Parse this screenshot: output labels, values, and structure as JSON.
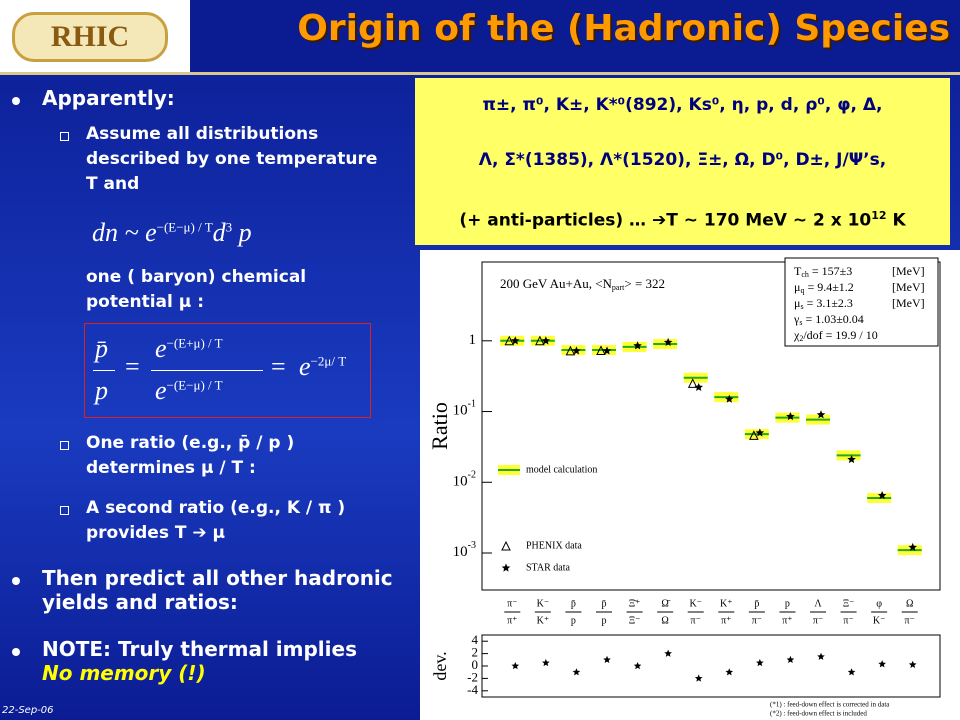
{
  "header": {
    "logo": "RHIC",
    "title": "Origin of the (Hadronic) Species"
  },
  "left": {
    "b1": "Apparently:",
    "s1": "Assume all distributions described by one temperature T and",
    "formula1": {
      "lhs": "dn ~ e",
      "exponent": "−(E−μ) / T",
      "d": "d",
      "power": "3",
      "p": "p"
    },
    "s1b": "one ( baryon) chemical potential μ :",
    "formula2": {
      "pbar": "p̄",
      "p": "p",
      "eq": "=",
      "num_base": "e",
      "num_exp": "−(E+μ) / T",
      "den_base": "e",
      "den_exp": "−(E−μ) / T",
      "rhs_base": "e",
      "rhs_exp": "−2μ/ T"
    },
    "s2": "One ratio (e.g., p̄ / p ) determines μ / T :",
    "s3": "A second ratio (e.g., K / π ) provides T ➔ μ",
    "b2": "Then predict all other hadronic yields and ratios:",
    "b3": "NOTE: Truly thermal implies",
    "b3_em": "No memory (!)",
    "date": "22-Sep-06"
  },
  "box": {
    "line1": "π±, π⁰, K±, K*⁰(892), Ks⁰, η, p, d, ρ⁰, φ, Δ,",
    "line2": "Λ, Σ*(1385), Λ*(1520), Ξ±, Ω, D⁰, D±, J/Ψ’s,",
    "line3": "(+ anti-particles) … ➔T ~ 170 MeV ~ 2 x 10",
    "line3_sup": "12",
    "line3_end": " K"
  },
  "chart_data": {
    "type": "ratio-plot",
    "title": "200 GeV Au+Au, <N",
    "title_sub": "part",
    "title_end": "> = 322",
    "ylabel": "Ratio",
    "log_y": true,
    "ylim": [
      0.0003,
      13
    ],
    "yticks": [
      1,
      {
        "value": 0.1,
        "label": "10",
        "exponent": "-1"
      },
      {
        "value": 0.01,
        "label": "10",
        "exponent": "-2"
      },
      {
        "value": 0.001,
        "label": "10",
        "exponent": "-3"
      }
    ],
    "numerators": [
      "π⁻",
      "K⁻",
      "p̄",
      "p̄",
      "Ξ̄⁺",
      "Ω̄",
      "K⁻",
      "K⁺",
      "p̄",
      "p",
      "Λ",
      "Ξ⁻",
      "φ",
      "Ω"
    ],
    "denominators": [
      "π⁺",
      "K⁺",
      "p",
      "p",
      "Ξ⁻",
      "Ω",
      "π⁻",
      "π⁺",
      "π⁻",
      "π⁺",
      "π⁻",
      "π⁻",
      "K⁻",
      "π⁻"
    ],
    "series": [
      {
        "name": "model calculation",
        "marker": "band",
        "color": "#22aa22",
        "values": [
          1.0,
          1.0,
          0.74,
          0.74,
          0.82,
          0.9,
          0.3,
          0.16,
          0.048,
          0.082,
          0.077,
          0.024,
          0.006,
          0.0011
        ]
      },
      {
        "name": "PHENIX data",
        "marker": "triangle",
        "color": "#000000",
        "values": [
          1.0,
          1.0,
          0.72,
          0.73,
          null,
          null,
          0.25,
          null,
          0.046,
          null,
          null,
          null,
          null,
          null
        ]
      },
      {
        "name": "STAR data",
        "marker": "star",
        "color": "#000000",
        "values": [
          1.0,
          1.0,
          0.72,
          0.72,
          0.85,
          0.95,
          0.22,
          0.15,
          0.05,
          0.085,
          0.09,
          0.021,
          0.0065,
          0.0012
        ]
      }
    ],
    "fit": [
      {
        "symbol": "T",
        "sub": "ch",
        "value": " = 157±3",
        "unit": "[MeV]"
      },
      {
        "symbol": "μ",
        "sub": "q",
        "value": " = 9.4±1.2",
        "unit": "[MeV]"
      },
      {
        "symbol": "μ",
        "sub": "s",
        "value": " = 3.1±2.3",
        "unit": "[MeV]"
      },
      {
        "symbol": "γ",
        "sub": "s",
        "value": " = 1.03±0.04",
        "unit": ""
      },
      {
        "symbol": "χ",
        "sub": "2",
        "value": "/dof = 19.9 / 10",
        "unit": ""
      }
    ],
    "dev_label": "dev.",
    "dev_ylim": [
      -5,
      5
    ],
    "dev_yticks": [
      4,
      2,
      0,
      -2,
      -4
    ],
    "deviations": [
      0,
      0.5,
      -1,
      1,
      0,
      2,
      -2,
      -1,
      0.5,
      1,
      1.5,
      -1,
      0.3,
      0.2
    ],
    "notes": [
      "(*1) : feed-down effect is corrected in data",
      "(*2) : feed-down effect is included"
    ]
  }
}
